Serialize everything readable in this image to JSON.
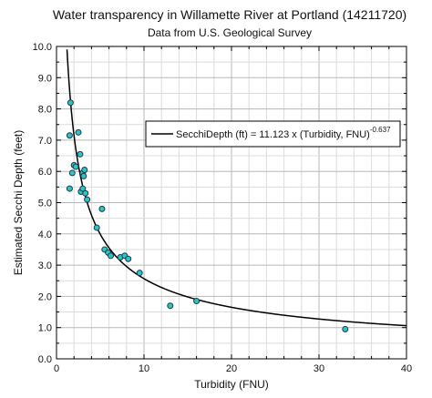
{
  "chart_data": {
    "type": "scatter",
    "title": "Water transparency in Willamette River at Portland (14211720)",
    "subtitle": "Data from U.S. Geological Survey",
    "xlabel": "Turbidity (FNU)",
    "ylabel": "Estimated Secchi Depth (feet)",
    "xlim": [
      0,
      40
    ],
    "ylim": [
      0,
      10
    ],
    "x_ticks": [
      "0",
      "10",
      "20",
      "30",
      "40"
    ],
    "y_ticks": [
      "0.0",
      "1.0",
      "2.0",
      "3.0",
      "4.0",
      "5.0",
      "6.0",
      "7.0",
      "8.0",
      "9.0",
      "10.0"
    ],
    "grid": true,
    "legend_position": "upper-right",
    "legend": {
      "label_main": "SecchiDepth (ft) = 11.123 x (Turbidity, FNU)",
      "label_exponent": "-0.637"
    },
    "fit": {
      "coefficient": 11.123,
      "exponent": -0.637
    },
    "point_fill": "#2ec4c4",
    "point_stroke": "#1a3a4a",
    "line_color": "#000000",
    "series": [
      {
        "points": [
          {
            "x": 1.5,
            "y": 5.45
          },
          {
            "x": 1.5,
            "y": 7.15
          },
          {
            "x": 1.6,
            "y": 8.2
          },
          {
            "x": 1.8,
            "y": 5.95
          },
          {
            "x": 2.0,
            "y": 6.2
          },
          {
            "x": 2.2,
            "y": 6.15
          },
          {
            "x": 2.5,
            "y": 7.25
          },
          {
            "x": 2.7,
            "y": 6.55
          },
          {
            "x": 2.8,
            "y": 5.35
          },
          {
            "x": 3.0,
            "y": 5.95
          },
          {
            "x": 3.0,
            "y": 5.45
          },
          {
            "x": 3.1,
            "y": 5.85
          },
          {
            "x": 3.2,
            "y": 6.05
          },
          {
            "x": 3.3,
            "y": 5.3
          },
          {
            "x": 3.5,
            "y": 5.1
          },
          {
            "x": 4.6,
            "y": 4.2
          },
          {
            "x": 5.2,
            "y": 4.8
          },
          {
            "x": 5.5,
            "y": 3.5
          },
          {
            "x": 5.9,
            "y": 3.4
          },
          {
            "x": 6.2,
            "y": 3.3
          },
          {
            "x": 7.3,
            "y": 3.25
          },
          {
            "x": 7.8,
            "y": 3.3
          },
          {
            "x": 8.2,
            "y": 3.2
          },
          {
            "x": 9.5,
            "y": 2.75
          },
          {
            "x": 13.0,
            "y": 1.7
          },
          {
            "x": 16.0,
            "y": 1.85
          },
          {
            "x": 33.0,
            "y": 0.95
          }
        ]
      }
    ]
  }
}
